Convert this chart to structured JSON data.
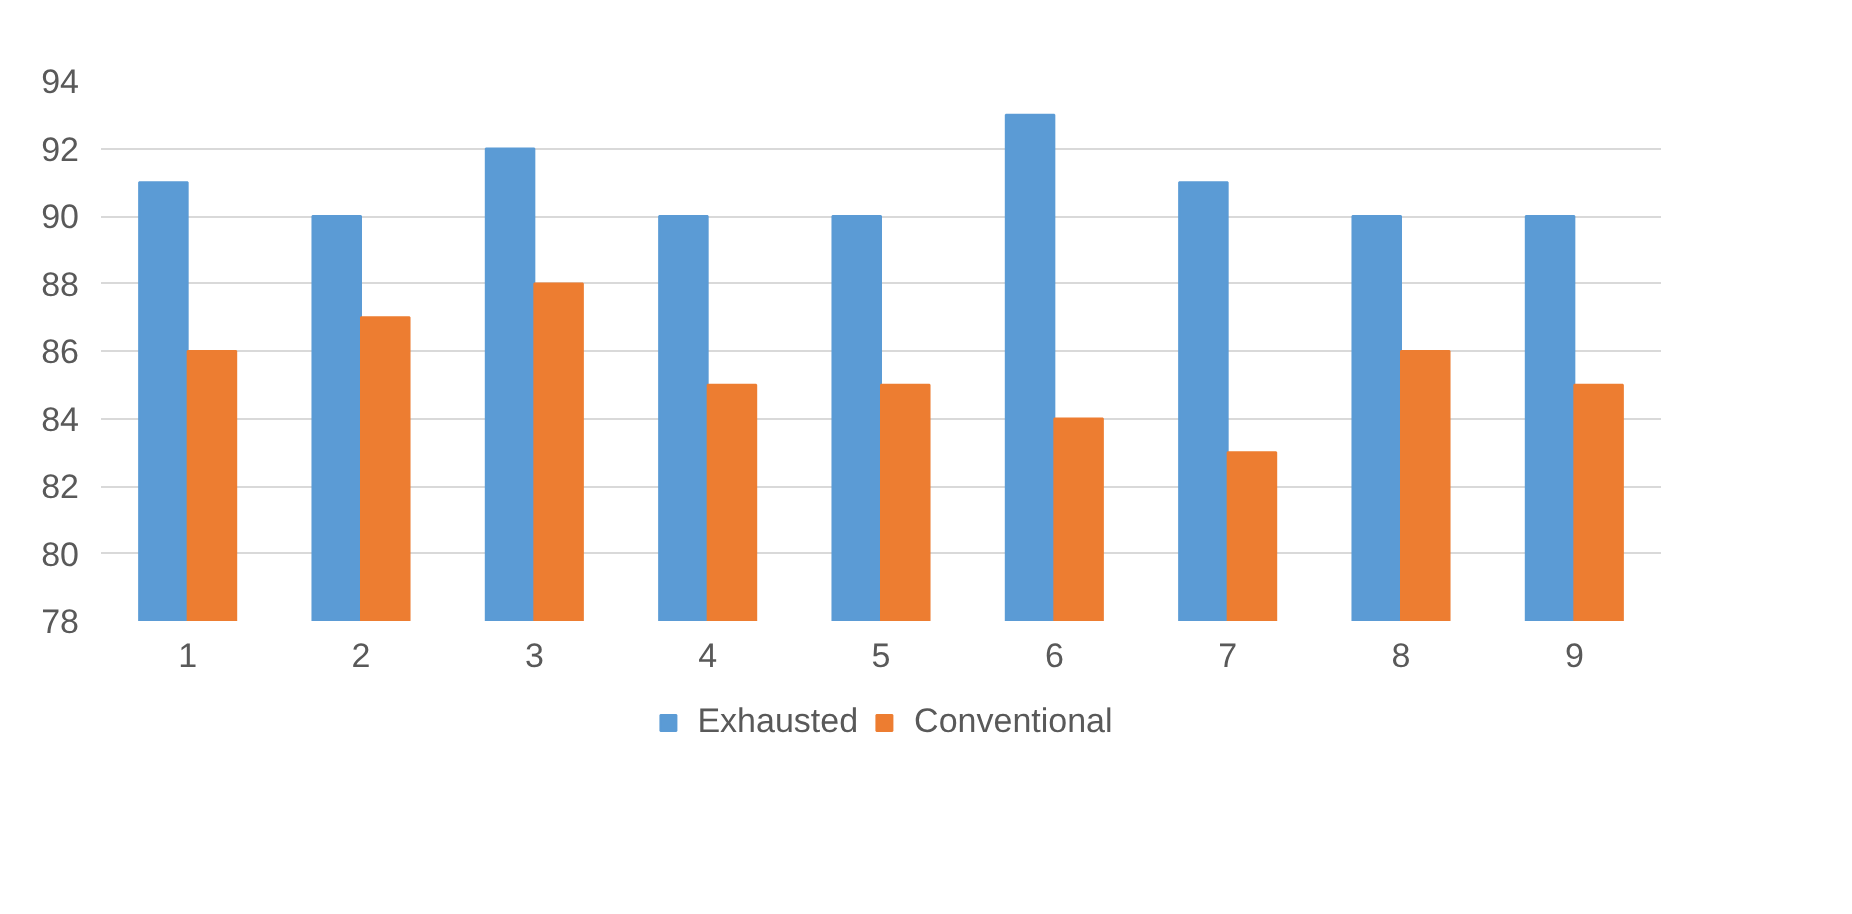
{
  "chart_data": {
    "type": "bar",
    "categories": [
      "1",
      "2",
      "3",
      "4",
      "5",
      "6",
      "7",
      "8",
      "9"
    ],
    "series": [
      {
        "name": "Exhausted",
        "color": "#5b9bd5",
        "values": [
          91,
          90,
          92,
          90,
          90,
          93,
          91,
          90,
          90
        ]
      },
      {
        "name": "Conventional",
        "color": "#ed7d31",
        "values": [
          86,
          87,
          88,
          85,
          85,
          84,
          83,
          86,
          85
        ]
      }
    ],
    "ylim": [
      78,
      94
    ],
    "yticks": [
      78,
      80,
      82,
      84,
      86,
      88,
      90,
      92,
      94
    ],
    "grid": "y",
    "legend": "bottom"
  }
}
